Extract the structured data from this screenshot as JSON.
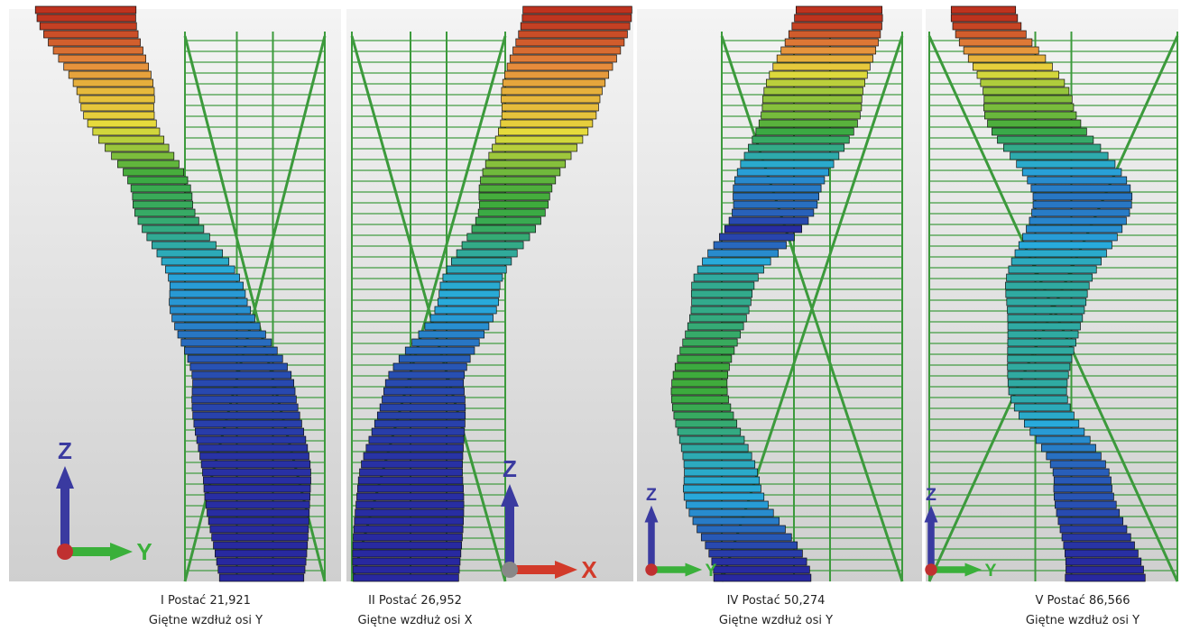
{
  "panels": [
    {
      "caption": {
        "title": "I Postać 21,921",
        "subtitle": "Giętne wzdłuż osi Y"
      },
      "axes": {
        "vertical": "Z",
        "horizontal": "Y"
      }
    },
    {
      "caption": {
        "title": "II Postać 26,952",
        "subtitle": "Giętne wzdłuż osi X"
      },
      "axes": {
        "vertical": "Z",
        "horizontal": "X"
      }
    },
    {
      "caption": {
        "title": "IV Postać 50,274",
        "subtitle": "Giętne wzdłuż osi Y"
      },
      "axes": {
        "vertical": "Z",
        "horizontal": "Y"
      }
    },
    {
      "caption": {
        "title": "V Postać 86,566",
        "subtitle": "Giętne wzdłuż osi Y"
      },
      "axes": {
        "vertical": "Z",
        "horizontal": "Y"
      }
    }
  ]
}
